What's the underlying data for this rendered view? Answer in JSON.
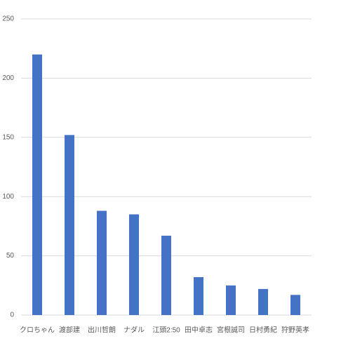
{
  "chart_data": {
    "type": "bar",
    "categories": [
      "クロちゃん",
      "渡部建",
      "出川哲朗",
      "ナダル",
      "江頭2:50",
      "田中卓志",
      "宮根誠司",
      "日村勇紀",
      "狩野英孝"
    ],
    "values": [
      220,
      152,
      88,
      85,
      67,
      32,
      25,
      22,
      17
    ],
    "color": "#4472c4",
    "ylim": [
      0,
      250
    ],
    "yticks": [
      0,
      50,
      100,
      150,
      200,
      250
    ],
    "grid": true
  }
}
